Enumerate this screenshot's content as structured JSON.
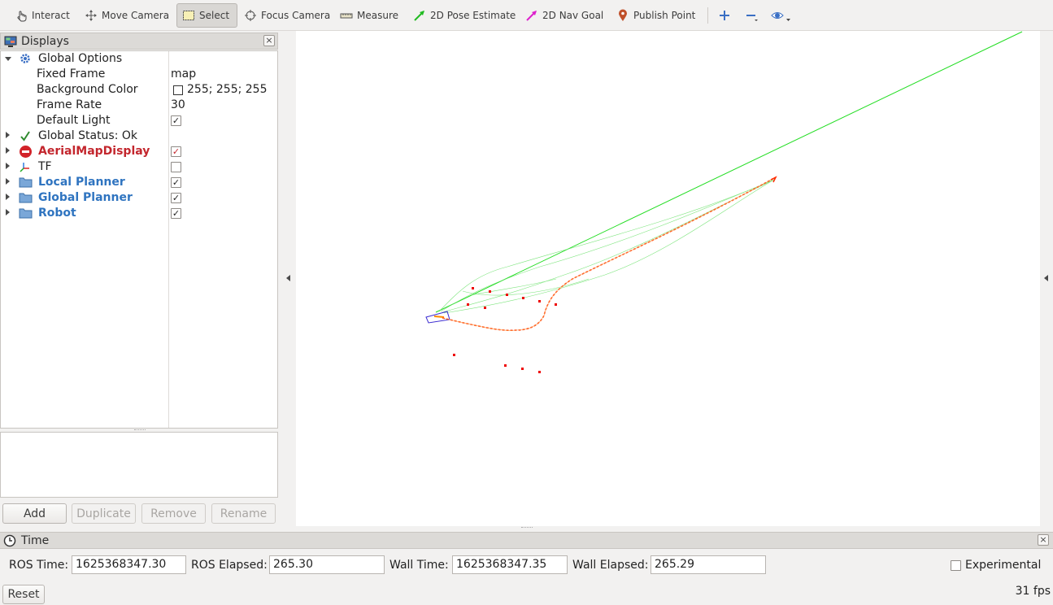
{
  "toolbar": {
    "tools": [
      {
        "id": "interact",
        "label": "Interact",
        "icon": "hand-pointer-icon"
      },
      {
        "id": "move-camera",
        "label": "Move Camera",
        "icon": "move-arrows-icon"
      },
      {
        "id": "select",
        "label": "Select",
        "icon": "select-rectangle-icon",
        "active": true
      },
      {
        "id": "focus-camera",
        "label": "Focus Camera",
        "icon": "crosshair-icon"
      },
      {
        "id": "measure",
        "label": "Measure",
        "icon": "ruler-icon"
      },
      {
        "id": "pose-estimate",
        "label": "2D Pose Estimate",
        "icon": "green-arrow-icon"
      },
      {
        "id": "nav-goal",
        "label": "2D Nav Goal",
        "icon": "magenta-arrow-icon"
      },
      {
        "id": "publish-point",
        "label": "Publish Point",
        "icon": "map-pin-icon"
      }
    ],
    "extra_icons": [
      "plus-icon",
      "minus-icon",
      "eye-icon"
    ]
  },
  "displays": {
    "title": "Displays",
    "close": "×",
    "global_options": {
      "label": "Global Options",
      "fixed_frame_label": "Fixed Frame",
      "fixed_frame_value": "map",
      "bg_color_label": "Background Color",
      "bg_color_value": "255; 255; 255",
      "frame_rate_label": "Frame Rate",
      "frame_rate_value": "30",
      "default_light_label": "Default Light",
      "default_light_checked": "✓"
    },
    "items": [
      {
        "label": "Global Status: Ok",
        "icon": "checkmark-icon"
      },
      {
        "label": "AerialMapDisplay",
        "icon": "error-icon",
        "check": "✓"
      },
      {
        "label": "TF",
        "icon": "tf-axes-icon",
        "check": ""
      },
      {
        "label": "Local Planner",
        "icon": "folder-icon",
        "check": "✓"
      },
      {
        "label": "Global Planner",
        "icon": "folder-icon",
        "check": "✓"
      },
      {
        "label": "Robot",
        "icon": "folder-icon",
        "check": "✓"
      }
    ],
    "buttons": {
      "add": "Add",
      "duplicate": "Duplicate",
      "remove": "Remove",
      "rename": "Rename"
    }
  },
  "time": {
    "title": "Time",
    "close": "×",
    "ros_time_label": "ROS Time:",
    "ros_time": "1625368347.30",
    "ros_elapsed_label": "ROS Elapsed:",
    "ros_elapsed": "265.30",
    "wall_time_label": "Wall Time:",
    "wall_time": "1625368347.35",
    "wall_elapsed_label": "Wall Elapsed:",
    "wall_elapsed": "265.29",
    "experimental_label": "Experimental",
    "reset": "Reset",
    "fps": "31 fps"
  },
  "colors": {
    "global_path": "#22dd22",
    "local_path": "#ff2a00",
    "obstacles": "#ee0000",
    "robot_footprint": "#3a2ad0",
    "accent_blue": "#2f74c0",
    "error_red": "#c3262d"
  }
}
